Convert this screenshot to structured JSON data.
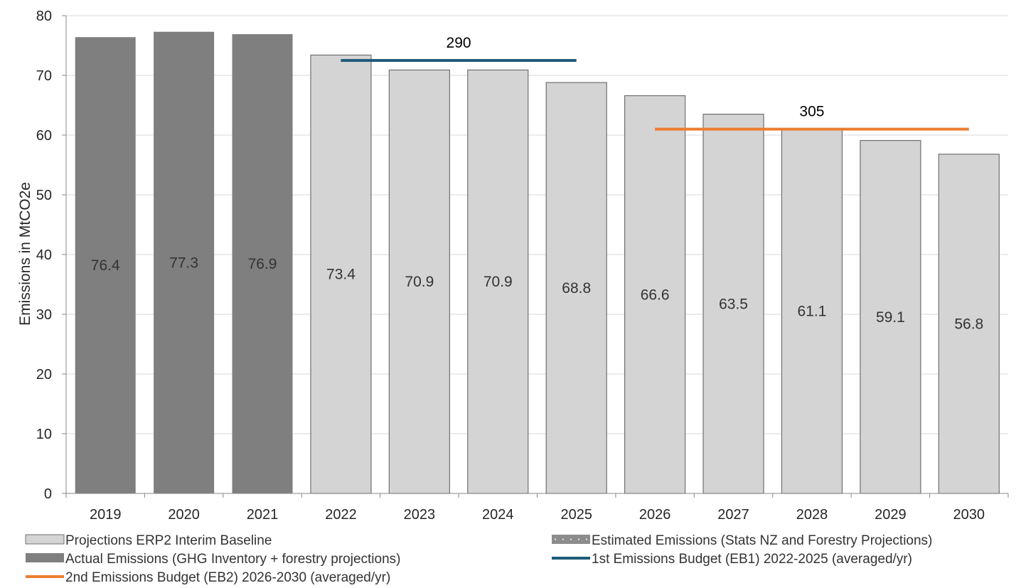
{
  "chart_data": {
    "type": "bar",
    "categories": [
      "2019",
      "2020",
      "2021",
      "2022",
      "2023",
      "2024",
      "2025",
      "2026",
      "2027",
      "2028",
      "2029",
      "2030"
    ],
    "values": [
      76.4,
      77.3,
      76.9,
      73.4,
      70.9,
      70.9,
      68.8,
      66.6,
      63.5,
      61.1,
      59.1,
      56.8
    ],
    "data_labels": [
      "76.4",
      "77.3",
      "76.9",
      "73.4",
      "70.9",
      "70.9",
      "68.8",
      "66.6",
      "63.5",
      "61.1",
      "59.1",
      "56.8"
    ],
    "bar_series": [
      "actual",
      "actual",
      "actual",
      "projection",
      "projection",
      "projection",
      "projection",
      "projection",
      "projection",
      "projection",
      "projection",
      "projection"
    ],
    "ylabel": "Emissions in MtCO2e",
    "xlabel": "",
    "ylim": [
      0,
      80
    ],
    "yticks": [
      0,
      10,
      20,
      30,
      40,
      50,
      60,
      70,
      80
    ],
    "grid": true,
    "budgets": [
      {
        "key": "eb1",
        "label": "290",
        "start": "2022",
        "end": "2025",
        "value": 72.5,
        "color": "#1f5c7a"
      },
      {
        "key": "eb2",
        "label": "305",
        "start": "2026",
        "end": "2030",
        "value": 61.0,
        "color": "#ed7d31"
      }
    ],
    "colors": {
      "actual": "#7f7f7f",
      "projection": "#d4d4d4",
      "bar_edge": "#707070",
      "eb1": "#1f5c7a",
      "eb2": "#ed7d31",
      "grid": "#d9d9d9",
      "axis": "#888888"
    },
    "legend": {
      "placement": "bottom",
      "items": [
        {
          "key": "projection",
          "label": "Projections ERP2 Interim Baseline",
          "swatch": "box-light"
        },
        {
          "key": "estimated",
          "label": "Estimated Emissions (Stats NZ and Forestry Projections)",
          "swatch": "box-dotted"
        },
        {
          "key": "actual",
          "label": "Actual Emissions (GHG Inventory + forestry projections)",
          "swatch": "box-dark"
        },
        {
          "key": "eb1",
          "label": "1st Emissions Budget (EB1) 2022-2025 (averaged/yr)",
          "swatch": "line-blue"
        },
        {
          "key": "eb2",
          "label": "2nd Emissions Budget (EB2) 2026-2030 (averaged/yr)",
          "swatch": "line-orange"
        }
      ]
    }
  }
}
